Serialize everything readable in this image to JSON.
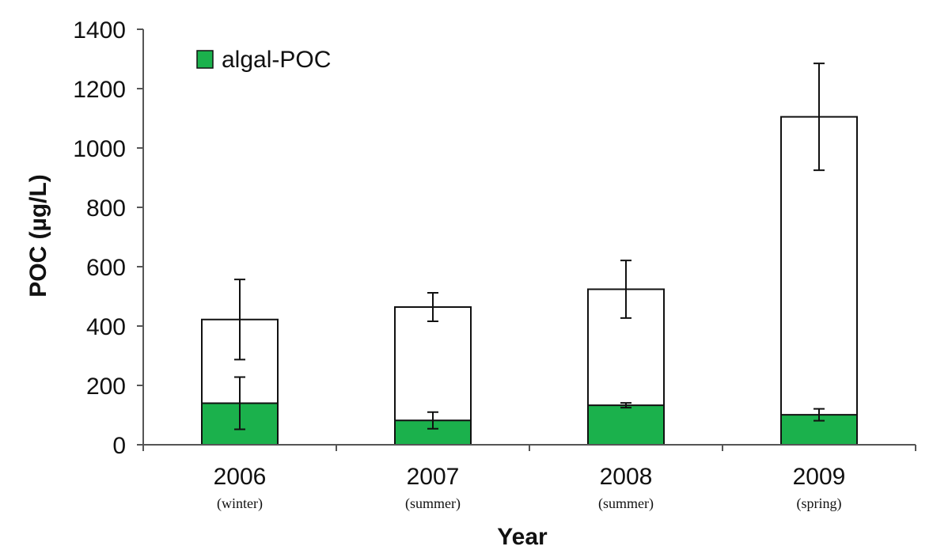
{
  "chart_data": {
    "type": "bar",
    "stacked": false,
    "categories": [
      "2006",
      "2007",
      "2008",
      "2009"
    ],
    "category_sublabels": [
      "(winter)",
      "(summer)",
      "(summer)",
      "(spring)"
    ],
    "series": [
      {
        "values": [
          422,
          464,
          524,
          1105
        ],
        "error": [
          135,
          48,
          97,
          180
        ],
        "color": "#ffffff",
        "edge": "#111111"
      },
      {
        "name": "algal-POC",
        "values": [
          140,
          82,
          133,
          101
        ],
        "error": [
          88,
          28,
          8,
          20
        ],
        "color": "#1bb14c",
        "edge": "#111111"
      }
    ],
    "xlabel": "Year",
    "ylabel": "POC (µg/L)",
    "ylim": [
      0,
      1400
    ],
    "yticks": [
      0,
      200,
      400,
      600,
      800,
      1000,
      1200,
      1400
    ],
    "grid": false,
    "legend": {
      "position": "top-left",
      "entries": [
        "algal-POC"
      ]
    }
  }
}
